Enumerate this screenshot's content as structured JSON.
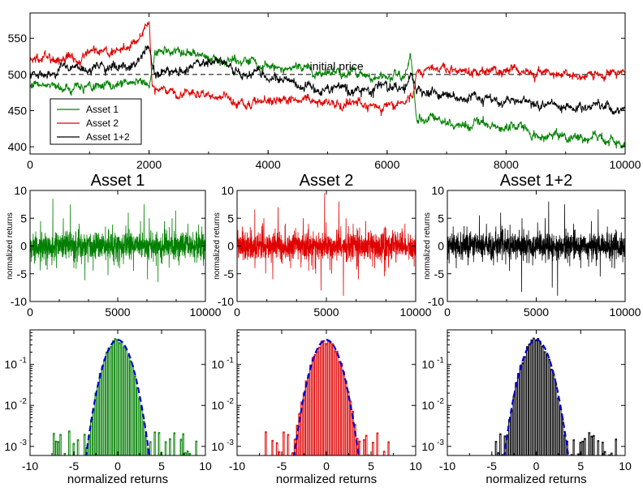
{
  "colors": {
    "asset1": "#008000",
    "asset2": "#e00000",
    "asset12": "#000000",
    "fit": "#0000cc"
  },
  "chart_data": [
    {
      "id": "prices",
      "type": "line",
      "title": "",
      "xlim": [
        0,
        10000
      ],
      "ylim": [
        390,
        585
      ],
      "xticks": [
        "0",
        "2000",
        "4000",
        "6000",
        "8000",
        "10000"
      ],
      "yticks": [
        "400",
        "450",
        "500",
        "550"
      ],
      "annotation": "initial price",
      "initial_price": 500,
      "legend": [
        "Asset 1",
        "Asset 2",
        "Asset 1+2"
      ],
      "legend_position": "bottom-left",
      "series": [
        {
          "name": "Asset 1",
          "color": "#008000",
          "x": [
            0,
            500,
            1000,
            1500,
            1900,
            2000,
            2100,
            2500,
            3000,
            3500,
            4000,
            4500,
            5000,
            5500,
            6000,
            6300,
            6400,
            6500,
            7000,
            7500,
            8000,
            8500,
            9000,
            9500,
            10000
          ],
          "y": [
            485,
            482,
            484,
            487,
            488,
            480,
            525,
            530,
            525,
            518,
            510,
            506,
            502,
            500,
            500,
            505,
            525,
            440,
            435,
            432,
            425,
            420,
            415,
            410,
            403
          ]
        },
        {
          "name": "Asset 2",
          "color": "#e00000",
          "x": [
            0,
            500,
            1000,
            1500,
            1800,
            1950,
            2000,
            2050,
            2100,
            2500,
            3000,
            3500,
            4000,
            4500,
            5000,
            5500,
            6000,
            6300,
            6400,
            6450,
            6500,
            7000,
            7500,
            8000,
            8500,
            9000,
            9500,
            10000
          ],
          "y": [
            520,
            522,
            528,
            538,
            545,
            570,
            580,
            490,
            482,
            478,
            470,
            465,
            460,
            468,
            460,
            458,
            460,
            462,
            470,
            480,
            510,
            508,
            505,
            502,
            500,
            500,
            498,
            500
          ]
        },
        {
          "name": "Asset 1+2",
          "color": "#000000",
          "x": [
            0,
            500,
            1000,
            1500,
            1800,
            1950,
            2000,
            2100,
            2500,
            3000,
            3500,
            4000,
            4500,
            5000,
            5500,
            6000,
            6300,
            6400,
            6500,
            7000,
            7500,
            8000,
            8500,
            9000,
            9500,
            10000
          ],
          "y": [
            502,
            503,
            505,
            512,
            518,
            535,
            540,
            505,
            505,
            515,
            505,
            498,
            485,
            482,
            480,
            480,
            485,
            500,
            475,
            470,
            468,
            462,
            458,
            455,
            453,
            452
          ]
        }
      ]
    },
    {
      "id": "returns_asset1",
      "type": "line",
      "title": "Asset 1",
      "ylabel": "normalized returns",
      "xlim": [
        0,
        10000
      ],
      "ylim": [
        -10,
        10
      ],
      "xticks": [
        "0",
        "5000",
        "10000"
      ],
      "yticks": [
        "-10",
        "-5",
        "0",
        "5",
        "10"
      ],
      "series": [
        {
          "name": "Asset 1",
          "color": "#008000",
          "noise_std": 1.2,
          "spikes": [
            [
              600,
              4.5
            ],
            [
              900,
              -3.5
            ],
            [
              1300,
              8.5
            ],
            [
              1500,
              -4
            ],
            [
              1900,
              5
            ],
            [
              2300,
              7.5
            ],
            [
              2500,
              -4
            ],
            [
              2800,
              4
            ],
            [
              3300,
              -3
            ],
            [
              3600,
              -4.5
            ],
            [
              4300,
              3.5
            ],
            [
              4800,
              -3.5
            ],
            [
              5100,
              -4
            ],
            [
              5600,
              6
            ],
            [
              5900,
              -4.5
            ],
            [
              6300,
              4.5
            ],
            [
              6500,
              7.5
            ],
            [
              6800,
              5
            ],
            [
              7300,
              -6.5
            ],
            [
              7700,
              3
            ],
            [
              8100,
              5
            ],
            [
              8500,
              -3.5
            ],
            [
              9000,
              4
            ],
            [
              9500,
              -3
            ],
            [
              9800,
              3.5
            ]
          ]
        }
      ]
    },
    {
      "id": "returns_asset2",
      "type": "line",
      "title": "Asset 2",
      "ylabel": "normalized returns",
      "xlim": [
        0,
        10000
      ],
      "ylim": [
        -10,
        10
      ],
      "xticks": [
        "0",
        "5000",
        "10000"
      ],
      "yticks": [
        "-10",
        "-5",
        "0",
        "5",
        "10"
      ],
      "series": [
        {
          "name": "Asset 2",
          "color": "#e00000",
          "noise_std": 1.3,
          "spikes": [
            [
              300,
              3.5
            ],
            [
              1000,
              -4
            ],
            [
              1500,
              5
            ],
            [
              2000,
              -6
            ],
            [
              2300,
              7
            ],
            [
              2700,
              4
            ],
            [
              3000,
              -4
            ],
            [
              3700,
              5
            ],
            [
              4000,
              4
            ],
            [
              4400,
              -5
            ],
            [
              4700,
              -8
            ],
            [
              4900,
              9.5
            ],
            [
              5300,
              -5
            ],
            [
              5700,
              8
            ],
            [
              5950,
              -9
            ],
            [
              6100,
              5
            ],
            [
              6500,
              4
            ],
            [
              6800,
              -6
            ],
            [
              7200,
              4.5
            ],
            [
              7700,
              -4
            ],
            [
              8300,
              3.5
            ],
            [
              8900,
              -3
            ],
            [
              9400,
              4
            ]
          ]
        }
      ]
    },
    {
      "id": "returns_asset12",
      "type": "line",
      "title": "Asset 1+2",
      "ylabel": "normalized returns",
      "xlim": [
        0,
        10000
      ],
      "ylim": [
        -10,
        10
      ],
      "xticks": [
        "0",
        "5000",
        "10000"
      ],
      "yticks": [
        "-10",
        "-5",
        "0",
        "5",
        "10"
      ],
      "series": [
        {
          "name": "Asset 1+2",
          "color": "#000000",
          "noise_std": 1.2,
          "spikes": [
            [
              500,
              -4
            ],
            [
              1100,
              3.5
            ],
            [
              1800,
              5.5
            ],
            [
              2200,
              4
            ],
            [
              2600,
              -3.5
            ],
            [
              3000,
              6
            ],
            [
              3500,
              -4.5
            ],
            [
              4200,
              5
            ],
            [
              4800,
              -3.5
            ],
            [
              5500,
              5
            ],
            [
              5700,
              8
            ],
            [
              5900,
              -7.5
            ],
            [
              6200,
              -9
            ],
            [
              6600,
              7.5
            ],
            [
              7100,
              4
            ],
            [
              7500,
              -4
            ],
            [
              8100,
              4.5
            ],
            [
              8600,
              -5.5
            ],
            [
              9000,
              3.5
            ],
            [
              9400,
              -4
            ]
          ]
        }
      ]
    },
    {
      "id": "hist_asset1",
      "type": "bar",
      "title": "",
      "xlabel": "normalized returns",
      "yscale": "log",
      "xlim": [
        -10,
        10
      ],
      "ylim": [
        0.0006,
        0.7
      ],
      "xticks": [
        "-10",
        "-5",
        "0",
        "5",
        "10"
      ],
      "yticks": [
        "10",
        "10",
        "10"
      ],
      "ytick_exponents": [
        "-1",
        "-2",
        "-3"
      ],
      "fit": {
        "type": "gaussian",
        "mean": 0,
        "std": 1,
        "color": "#0000cc",
        "style": "dashed"
      },
      "series": [
        {
          "name": "Asset 1",
          "color": "#008000",
          "bin_width": 0.25,
          "extent": [
            -7.5,
            9
          ],
          "std": 1.0
        }
      ]
    },
    {
      "id": "hist_asset2",
      "type": "bar",
      "title": "",
      "xlabel": "normalized returns",
      "yscale": "log",
      "xlim": [
        -10,
        10
      ],
      "ylim": [
        0.0006,
        0.7
      ],
      "xticks": [
        "-10",
        "-5",
        "0",
        "5",
        "10"
      ],
      "yticks": [
        "10",
        "10",
        "10"
      ],
      "ytick_exponents": [
        "-1",
        "-2",
        "-3"
      ],
      "fit": {
        "type": "gaussian",
        "mean": 0,
        "std": 1,
        "color": "#0000cc",
        "style": "dashed"
      },
      "series": [
        {
          "name": "Asset 2",
          "color": "#e00000",
          "bin_width": 0.25,
          "extent": [
            -7,
            7.5
          ],
          "std": 1.05
        }
      ]
    },
    {
      "id": "hist_asset12",
      "type": "bar",
      "title": "",
      "xlabel": "normalized returns",
      "yscale": "log",
      "xlim": [
        -10,
        10
      ],
      "ylim": [
        0.0006,
        0.7
      ],
      "xticks": [
        "-10",
        "-5",
        "0",
        "5",
        "10"
      ],
      "yticks": [
        "10",
        "10",
        "10"
      ],
      "ytick_exponents": [
        "-1",
        "-2",
        "-3"
      ],
      "fit": {
        "type": "gaussian",
        "mean": 0,
        "std": 1,
        "color": "#0000cc",
        "style": "dashed"
      },
      "series": [
        {
          "name": "Asset 1+2",
          "color": "#000000",
          "bin_width": 0.25,
          "extent": [
            -5,
            9
          ],
          "std": 1.0
        }
      ]
    }
  ]
}
